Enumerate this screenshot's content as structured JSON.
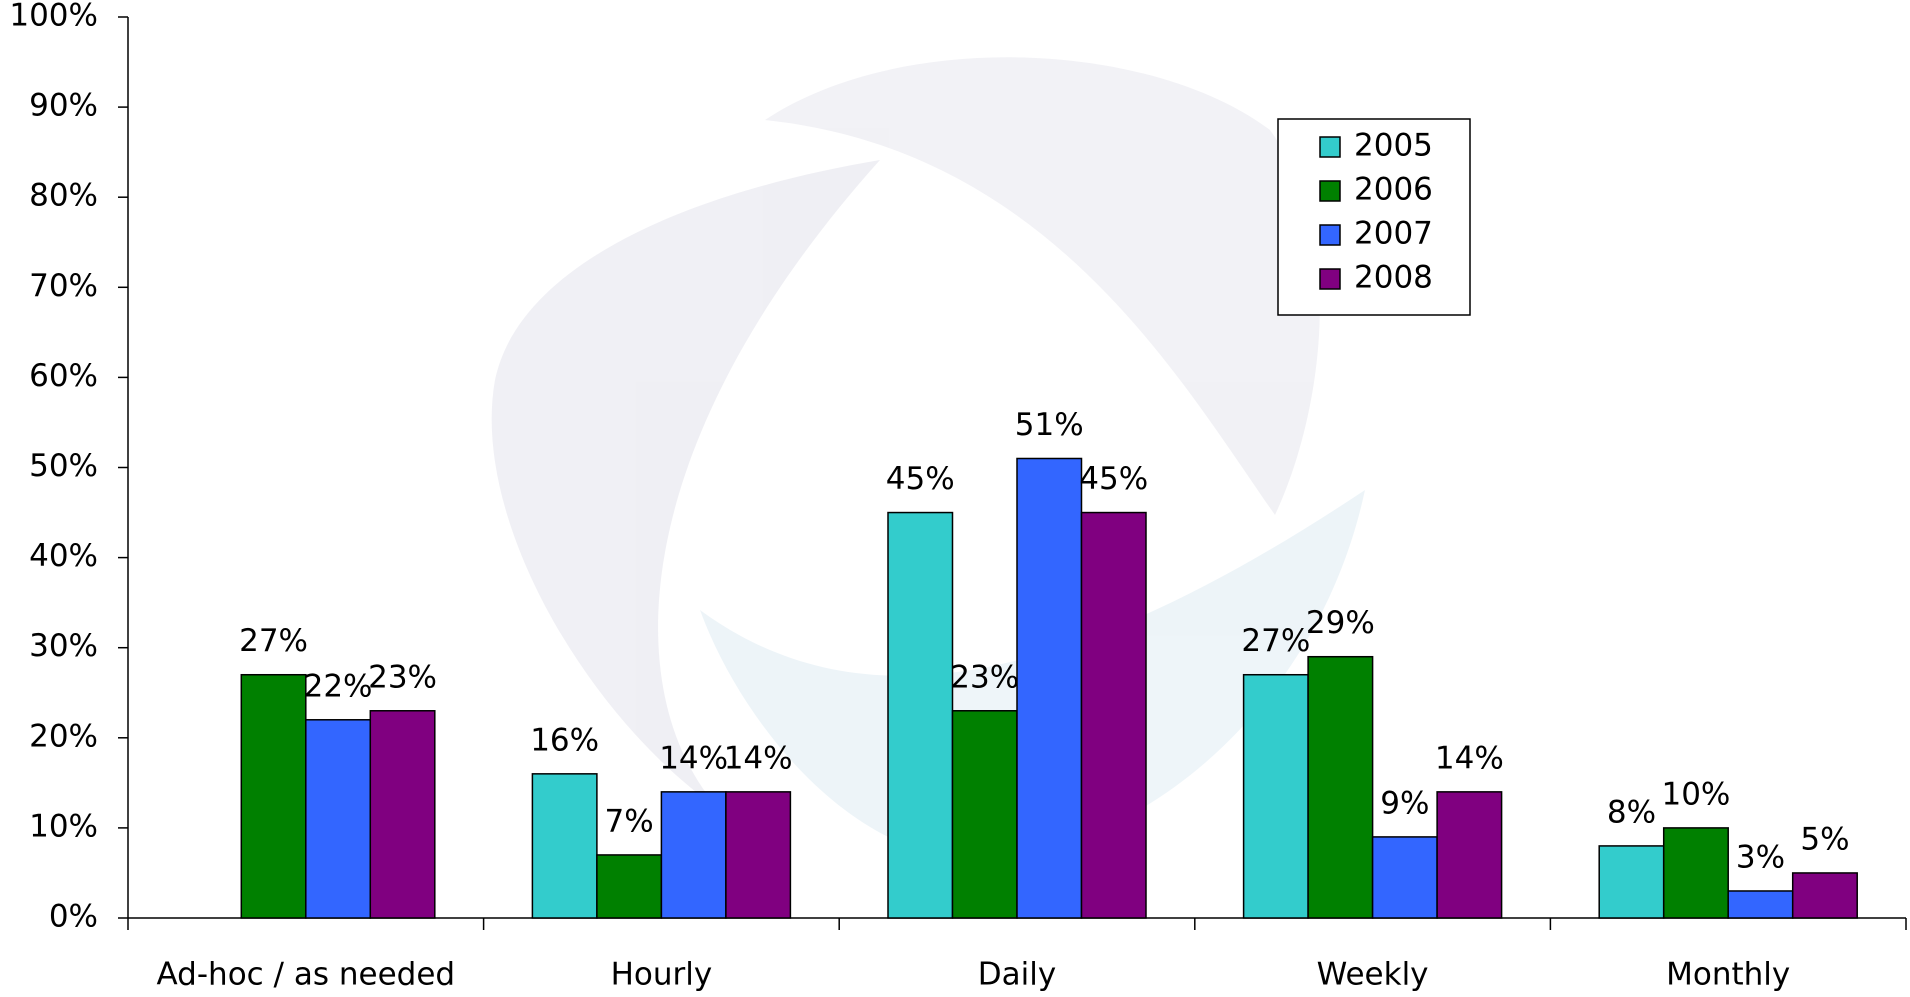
{
  "chart_data": {
    "type": "bar",
    "categories": [
      "Ad-hoc / as needed",
      "Hourly",
      "Daily",
      "Weekly",
      "Monthly"
    ],
    "series": [
      {
        "name": "2005",
        "color": "#33cccc",
        "values": [
          null,
          16,
          45,
          27,
          8
        ],
        "value_labels": [
          null,
          "16%",
          "45%",
          "27%",
          "8%"
        ]
      },
      {
        "name": "2006",
        "color": "#008000",
        "values": [
          27,
          7,
          23,
          29,
          10
        ],
        "value_labels": [
          "27%",
          "7%",
          "23%",
          "29%",
          "10%"
        ]
      },
      {
        "name": "2007",
        "color": "#3366ff",
        "values": [
          22,
          14,
          51,
          9,
          3
        ],
        "value_labels": [
          "22%",
          "14%",
          "51%",
          "9%",
          "3%"
        ]
      },
      {
        "name": "2008",
        "color": "#800080",
        "values": [
          23,
          14,
          45,
          14,
          5
        ],
        "value_labels": [
          "23%",
          "14%",
          "45%",
          "14%",
          "5%"
        ]
      }
    ],
    "ylim": [
      0,
      100
    ],
    "yticks": [
      {
        "value": 0,
        "label": "0%"
      },
      {
        "value": 10,
        "label": "10%"
      },
      {
        "value": 20,
        "label": "20%"
      },
      {
        "value": 30,
        "label": "30%"
      },
      {
        "value": 40,
        "label": "40%"
      },
      {
        "value": 50,
        "label": "50%"
      },
      {
        "value": 60,
        "label": "60%"
      },
      {
        "value": 70,
        "label": "70%"
      },
      {
        "value": 80,
        "label": "80%"
      },
      {
        "value": 90,
        "label": "90%"
      },
      {
        "value": 100,
        "label": "100%"
      }
    ],
    "grid": false,
    "legend": "upper-right"
  }
}
